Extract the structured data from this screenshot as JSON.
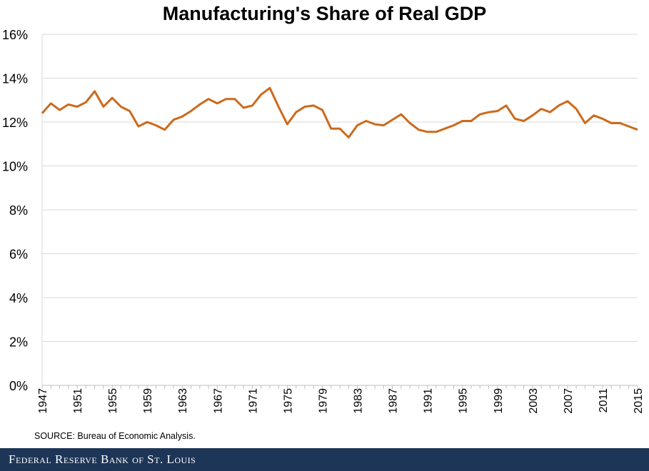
{
  "chart_data": {
    "type": "line",
    "title": "Manufacturing's Share of Real GDP",
    "xlabel": "",
    "ylabel": "",
    "ylim": [
      0,
      16
    ],
    "xlim": [
      1947,
      2015
    ],
    "y_ticks": [
      "0%",
      "2%",
      "4%",
      "6%",
      "8%",
      "10%",
      "12%",
      "14%",
      "16%"
    ],
    "x_ticks": [
      "1947",
      "1951",
      "1955",
      "1959",
      "1963",
      "1967",
      "1971",
      "1975",
      "1979",
      "1983",
      "1987",
      "1991",
      "1995",
      "1999",
      "2003",
      "2007",
      "2011",
      "2015"
    ],
    "grid": "horizontal",
    "line_color": "#cc6a1c",
    "x": [
      1947,
      1948,
      1949,
      1950,
      1951,
      1952,
      1953,
      1954,
      1955,
      1956,
      1957,
      1958,
      1959,
      1960,
      1961,
      1962,
      1963,
      1964,
      1965,
      1966,
      1967,
      1968,
      1969,
      1970,
      1971,
      1972,
      1973,
      1974,
      1975,
      1976,
      1977,
      1978,
      1979,
      1980,
      1981,
      1982,
      1983,
      1984,
      1985,
      1986,
      1987,
      1988,
      1989,
      1990,
      1991,
      1992,
      1993,
      1994,
      1995,
      1996,
      1997,
      1998,
      1999,
      2000,
      2001,
      2002,
      2003,
      2004,
      2005,
      2006,
      2007,
      2008,
      2009,
      2010,
      2011,
      2012,
      2013,
      2014,
      2015
    ],
    "series": [
      {
        "values": [
          12.4,
          12.85,
          12.55,
          12.8,
          12.7,
          12.9,
          13.4,
          12.7,
          13.1,
          12.7,
          12.5,
          11.8,
          12.0,
          11.85,
          11.65,
          12.1,
          12.25,
          12.5,
          12.8,
          13.05,
          12.85,
          13.05,
          13.05,
          12.65,
          12.75,
          13.25,
          13.55,
          12.7,
          11.9,
          12.45,
          12.7,
          12.75,
          12.55,
          11.7,
          11.7,
          11.3,
          11.85,
          12.05,
          11.9,
          11.85,
          12.1,
          12.35,
          11.95,
          11.65,
          11.55,
          11.55,
          11.7,
          11.85,
          12.05,
          12.05,
          12.35,
          12.45,
          12.5,
          12.75,
          12.15,
          12.05,
          12.3,
          12.6,
          12.45,
          12.75,
          12.95,
          12.6,
          11.95,
          12.3,
          12.15,
          11.95,
          11.95,
          11.8,
          11.65
        ]
      }
    ]
  },
  "source": "SOURCE: Bureau of Economic Analysis.",
  "footer": "Federal Reserve Bank of St. Louis"
}
